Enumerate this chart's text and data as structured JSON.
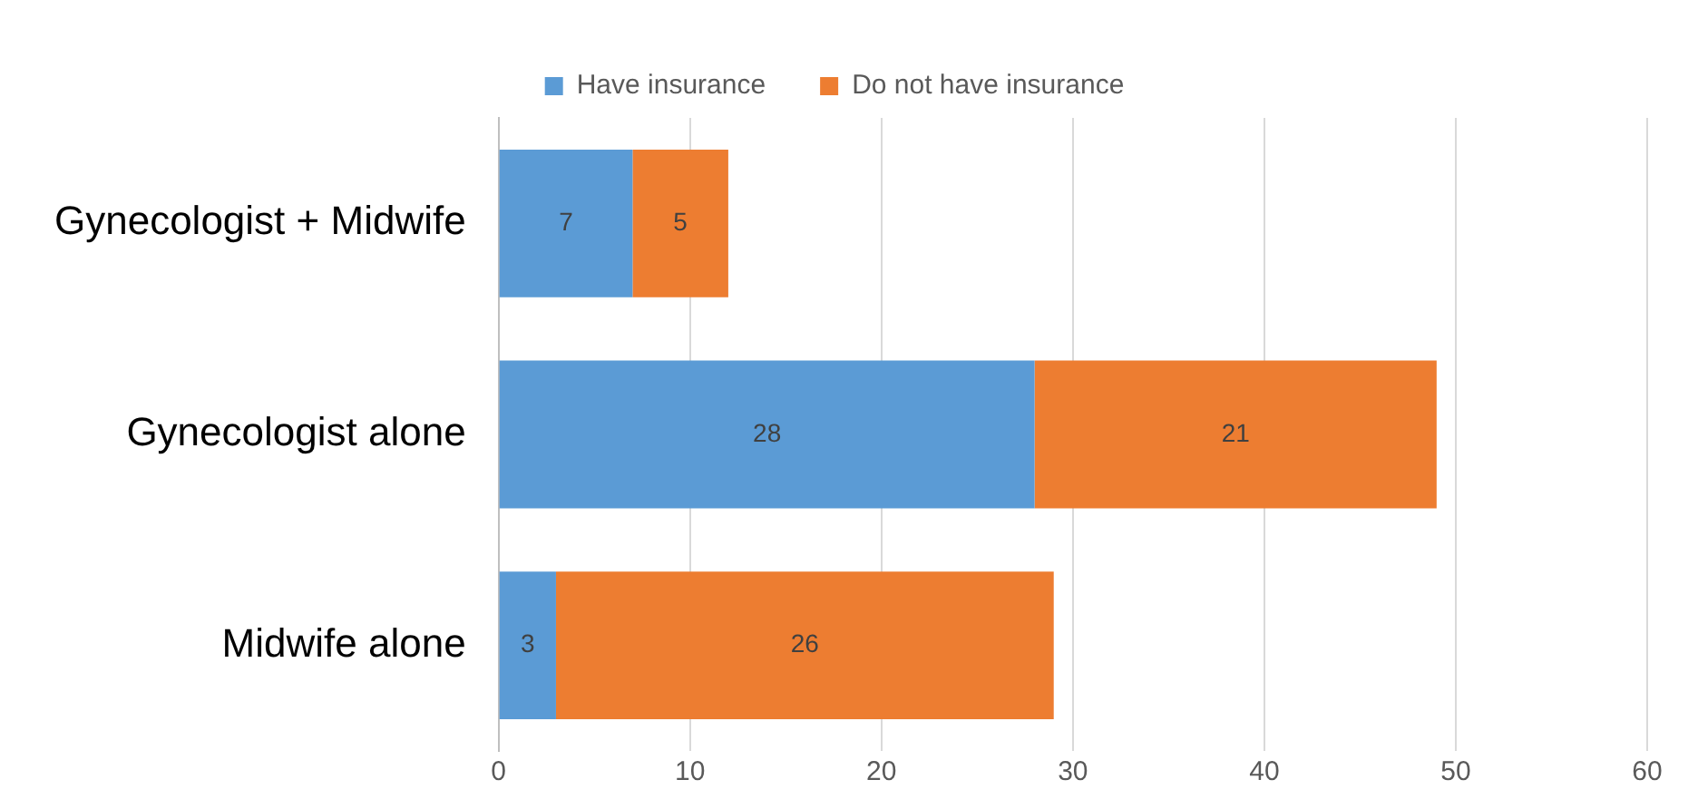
{
  "chart_data": {
    "type": "bar",
    "orientation": "horizontal",
    "stacked": true,
    "categories": [
      "Gynecologist + Midwife",
      "Gynecologist alone",
      "Midwife alone"
    ],
    "series": [
      {
        "name": "Have insurance",
        "color": "#5b9bd5",
        "values": [
          7,
          28,
          3
        ]
      },
      {
        "name": "Do not have insurance",
        "color": "#ed7d31",
        "values": [
          5,
          21,
          26
        ]
      }
    ],
    "xlim": [
      0,
      60
    ],
    "xticks": [
      0,
      10,
      20,
      30,
      40,
      50,
      60
    ],
    "grid": "x",
    "legend": "top",
    "data_labels": true
  }
}
